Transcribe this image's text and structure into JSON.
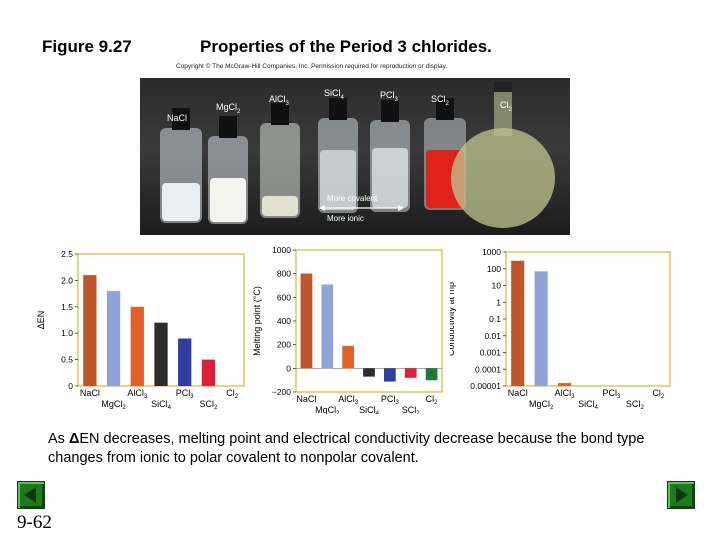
{
  "header": {
    "figure_label": "Figure 9.27",
    "title": "Properties of the Period 3 chlorides.",
    "copyright": "Copyright © The McGraw-Hill Companies, Inc. Permission required for reproduction or display."
  },
  "photo": {
    "labels": [
      {
        "base": "NaCl",
        "sub": ""
      },
      {
        "base": "MgCl",
        "sub": "2"
      },
      {
        "base": "AlCl",
        "sub": "3"
      },
      {
        "base": "SiCl",
        "sub": "4"
      },
      {
        "base": "PCl",
        "sub": "3"
      },
      {
        "base": "SCl",
        "sub": "2"
      },
      {
        "base": "Cl",
        "sub": "2"
      }
    ],
    "more_covalent": "More covalent",
    "more_ionic": "More ionic"
  },
  "colors": {
    "NaCl": "#c0562b",
    "MgCl2": "#8fa3d6",
    "AlCl3": "#e0612a",
    "SiCl4": "#2d2d2d",
    "PCl3": "#2e3fa0",
    "SCl2": "#e0203a",
    "Cl2": "#1e7a3c"
  },
  "chart_data": [
    {
      "type": "bar",
      "title": "",
      "ylabel": "ΔEN",
      "ylim": [
        0,
        2.5
      ],
      "yticks": [
        "0",
        "0.5",
        "1.0",
        "1.5",
        "2.0",
        "2.5"
      ],
      "ytick_values": [
        0,
        0.5,
        1.0,
        1.5,
        2.0,
        2.5
      ],
      "categories": [
        "NaCl",
        "MgCl2",
        "AlCl3",
        "SiCl4",
        "PCl3",
        "SCl2",
        "Cl2"
      ],
      "values": [
        2.1,
        1.8,
        1.5,
        1.2,
        0.9,
        0.5,
        0
      ],
      "xticks_top": [
        "NaCl",
        "AlCl3",
        "PCl3",
        "Cl2"
      ],
      "xticks_bottom": [
        "MgCl2",
        "SiCl4",
        "SCl2"
      ]
    },
    {
      "type": "bar",
      "ylabel": "Melting point (°C)",
      "ylim": [
        -200,
        1000
      ],
      "yticks": [
        "−200",
        "0",
        "200",
        "400",
        "600",
        "800",
        "1000"
      ],
      "ytick_values": [
        -200,
        0,
        200,
        400,
        600,
        800,
        1000
      ],
      "categories": [
        "NaCl",
        "MgCl2",
        "AlCl3",
        "SiCl4",
        "PCl3",
        "SCl2",
        "Cl2"
      ],
      "values": [
        801,
        708,
        190,
        -70,
        -112,
        -80,
        -101
      ],
      "xticks_top": [
        "NaCl",
        "AlCl3",
        "PCl3",
        "Cl2"
      ],
      "xticks_bottom": [
        "MgCl2",
        "SiCl4",
        "SCl2"
      ]
    },
    {
      "type": "bar",
      "ylabel": "Conductivity at mp",
      "scale": "log",
      "ylim": [
        1e-05,
        1000
      ],
      "yticks": [
        "0.00001",
        "0.0001",
        "0.001",
        "0.01",
        "0.1",
        "1",
        "10",
        "100",
        "1000"
      ],
      "ytick_values": [
        1e-05,
        0.0001,
        0.001,
        0.01,
        0.1,
        1,
        10,
        100,
        1000
      ],
      "categories": [
        "NaCl",
        "MgCl2",
        "AlCl3",
        "SiCl4",
        "PCl3",
        "SCl2",
        "Cl2"
      ],
      "values": [
        300,
        70,
        1.5e-05,
        0,
        0,
        0,
        0
      ],
      "xticks_top": [
        "NaCl",
        "AlCl3",
        "PCl3",
        "Cl2"
      ],
      "xticks_bottom": [
        "MgCl2",
        "SiCl4",
        "SCl2"
      ]
    }
  ],
  "caption": {
    "prefix": "As ",
    "delta": "Δ",
    "text": "EN decreases, melting point and electrical conductivity decrease because the bond type changes from ionic to polar covalent to nonpolar covalent."
  },
  "footer": {
    "slide_number": "9-62"
  }
}
